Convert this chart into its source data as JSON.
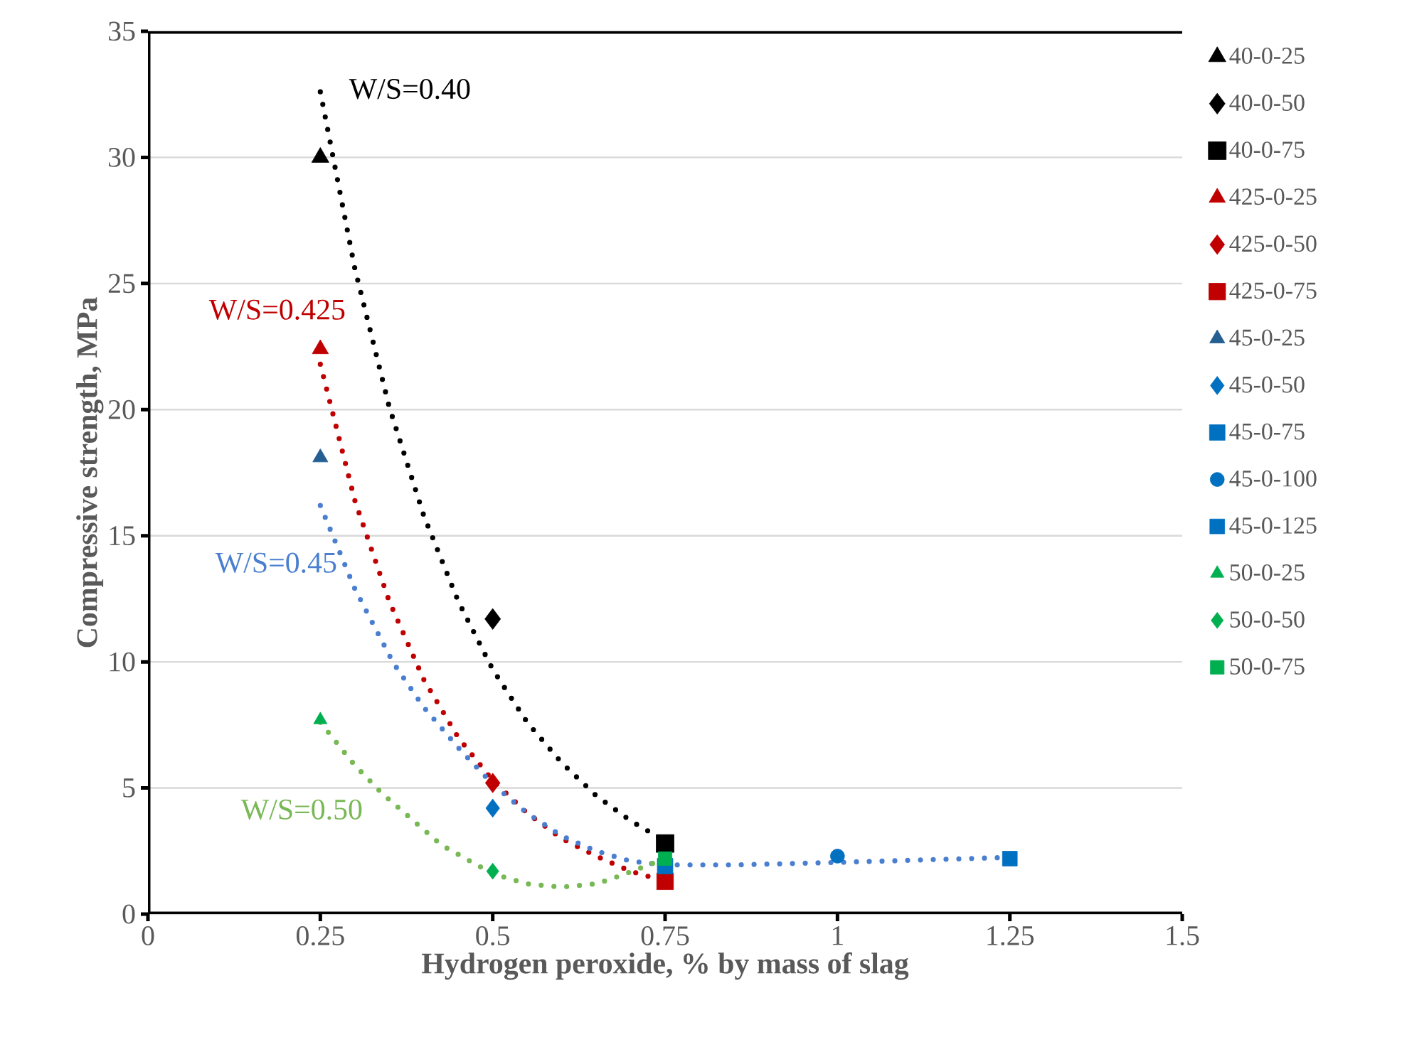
{
  "chart_data": {
    "type": "scatter",
    "xlabel": "Hydrogen peroxide, % by mass of slag",
    "ylabel": "Compressive strength, MPa",
    "xlim": [
      0,
      1.5
    ],
    "xticks": [
      0,
      0.25,
      0.5,
      0.75,
      1,
      1.25,
      1.5
    ],
    "ylim": [
      0,
      35
    ],
    "yticks": [
      0,
      5,
      10,
      15,
      20,
      25,
      30,
      35
    ],
    "grid": "y",
    "legend": "right",
    "series": [
      {
        "name": "40-0-25",
        "color": "#000000",
        "marker": "triangle",
        "x": [
          0.25
        ],
        "values": [
          30.0
        ]
      },
      {
        "name": "40-0-50",
        "color": "#000000",
        "marker": "diamond",
        "x": [
          0.5
        ],
        "values": [
          11.7
        ]
      },
      {
        "name": "40-0-75",
        "color": "#000000",
        "marker": "square",
        "x": [
          0.75
        ],
        "values": [
          2.8
        ]
      },
      {
        "name": "425-0-25",
        "color": "#c00000",
        "marker": "triangle",
        "x": [
          0.25
        ],
        "values": [
          22.4
        ]
      },
      {
        "name": "425-0-50",
        "color": "#c00000",
        "marker": "diamond",
        "x": [
          0.5
        ],
        "values": [
          5.2
        ]
      },
      {
        "name": "425-0-75",
        "color": "#c00000",
        "marker": "square",
        "x": [
          0.75
        ],
        "values": [
          1.3
        ]
      },
      {
        "name": "45-0-25",
        "color": "#255e91",
        "marker": "triangle",
        "x": [
          0.25
        ],
        "values": [
          18.1
        ]
      },
      {
        "name": "45-0-50",
        "color": "#0070c0",
        "marker": "diamond",
        "x": [
          0.5
        ],
        "values": [
          4.2
        ]
      },
      {
        "name": "45-0-75",
        "color": "#0070c0",
        "marker": "square",
        "x": [
          0.75
        ],
        "values": [
          1.9
        ]
      },
      {
        "name": "45-0-100",
        "color": "#0070c0",
        "marker": "circle",
        "x": [
          1.0
        ],
        "values": [
          2.3
        ]
      },
      {
        "name": "45-0-125",
        "color": "#0070c0",
        "marker": "square",
        "x": [
          1.25
        ],
        "values": [
          2.2
        ]
      },
      {
        "name": "50-0-25",
        "color": "#00b050",
        "marker": "triangle",
        "x": [
          0.25
        ],
        "values": [
          7.7
        ]
      },
      {
        "name": "50-0-50",
        "color": "#00b050",
        "marker": "diamond",
        "x": [
          0.5
        ],
        "values": [
          1.7
        ]
      },
      {
        "name": "50-0-75",
        "color": "#00b050",
        "marker": "square",
        "x": [
          0.75
        ],
        "values": [
          2.2
        ]
      },
      {
        "type": "line",
        "color": "#000000",
        "marker": "none",
        "line_style": "dotted",
        "x": [
          0.25,
          0.3,
          0.35,
          0.4,
          0.45,
          0.5,
          0.55,
          0.6,
          0.65,
          0.7,
          0.75
        ],
        "values": [
          32.6,
          25.6,
          20.1,
          15.8,
          12.4,
          9.7,
          7.6,
          6.0,
          4.7,
          3.7,
          2.9
        ]
      },
      {
        "type": "line",
        "color": "#c00000",
        "marker": "none",
        "line_style": "dotted",
        "x": [
          0.25,
          0.3,
          0.35,
          0.4,
          0.45,
          0.5,
          0.55,
          0.6,
          0.65,
          0.7,
          0.75
        ],
        "values": [
          21.8,
          16.4,
          12.4,
          9.3,
          7.0,
          5.3,
          4.0,
          3.0,
          2.3,
          1.7,
          1.3
        ]
      },
      {
        "type": "line",
        "color": "#4a7fd0",
        "marker": "none",
        "line_style": "dotted",
        "x": [
          0.25,
          0.3,
          0.356,
          0.4,
          0.45,
          0.5,
          0.55,
          0.6,
          0.65,
          0.7,
          0.75,
          0.85,
          1.0,
          1.125,
          1.25
        ],
        "values": [
          16.2,
          12.9,
          9.95,
          8.2,
          6.6,
          5.15,
          4.0,
          3.1,
          2.5,
          2.1,
          1.95,
          1.95,
          2.05,
          2.15,
          2.25
        ]
      },
      {
        "type": "line",
        "color": "#78b855",
        "marker": "none",
        "line_style": "dotted",
        "x": [
          0.25,
          0.3,
          0.339,
          0.425,
          0.5,
          0.55,
          0.6,
          0.65,
          0.683,
          0.75
        ],
        "values": [
          7.6,
          5.9,
          4.8,
          2.75,
          1.6,
          1.2,
          1.07,
          1.2,
          1.5,
          2.2
        ]
      }
    ],
    "annotations": [
      "W/S=0.40",
      "W/S=0.425",
      "W/S=0.45",
      "W/S=0.50"
    ]
  }
}
